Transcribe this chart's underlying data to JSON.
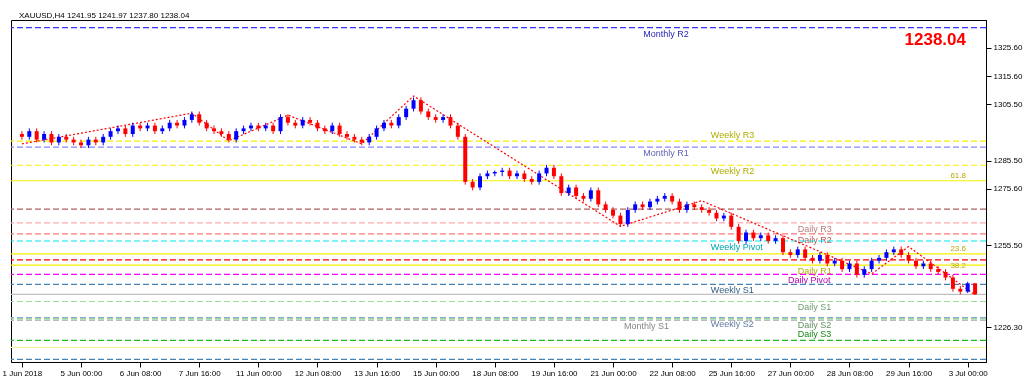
{
  "chart_data": {
    "type": "candlestick",
    "title": "XAUUSD,H4 1241.95 1241.97 1237.80 1238.04",
    "categories": [
      "1 Jun 2018",
      null,
      null,
      null,
      null,
      null,
      null,
      null,
      "5 Jun 00:00",
      null,
      null,
      null,
      null,
      null,
      null,
      null,
      "6 Jun 08:00",
      null,
      null,
      null,
      null,
      null,
      null,
      null,
      "7 Jun 16:00",
      null,
      null,
      null,
      null,
      null,
      null,
      null,
      "11 Jun 00:00",
      null,
      null,
      null,
      null,
      null,
      null,
      null,
      "12 Jun 08:00",
      null,
      null,
      null,
      null,
      null,
      null,
      null,
      "13 Jun 16:00",
      null,
      null,
      null,
      null,
      null,
      null,
      null,
      "15 Jun 00:00",
      null,
      null,
      null,
      null,
      null,
      null,
      null,
      "18 Jun 08:00",
      null,
      null,
      null,
      null,
      null,
      null,
      null,
      "19 Jun 16:00",
      null,
      null,
      null,
      null,
      null,
      null,
      null,
      "21 Jun 00:00",
      null,
      null,
      null,
      null,
      null,
      null,
      null,
      "22 Jun 08:00",
      null,
      null,
      null,
      null,
      null,
      null,
      null,
      "25 Jun 16:00",
      null,
      null,
      null,
      null,
      null,
      null,
      null,
      "27 Jun 00:00",
      null,
      null,
      null,
      null,
      null,
      null,
      null,
      "28 Jun 08:00",
      null,
      null,
      null,
      null,
      null,
      null,
      null,
      "29 Jun 16:00",
      null,
      null,
      null,
      null,
      null,
      null,
      null,
      "3 Jul 00:00",
      null
    ],
    "ohlc": [
      [
        1295,
        1296,
        1293,
        1294
      ],
      [
        1294,
        1297,
        1293,
        1296
      ],
      [
        1296,
        1297,
        1292,
        1293
      ],
      [
        1293,
        1296,
        1292,
        1295
      ],
      [
        1295,
        1296,
        1291,
        1292
      ],
      [
        1292,
        1295,
        1291,
        1294
      ],
      [
        1294,
        1295,
        1292,
        1293
      ],
      [
        1293,
        1294,
        1291,
        1292
      ],
      [
        1292,
        1293,
        1290,
        1291
      ],
      [
        1291,
        1294,
        1290,
        1293
      ],
      [
        1293,
        1294,
        1291,
        1292
      ],
      [
        1292,
        1295,
        1291,
        1294
      ],
      [
        1294,
        1297,
        1293,
        1296
      ],
      [
        1296,
        1298,
        1295,
        1297
      ],
      [
        1297,
        1298,
        1294,
        1295
      ],
      [
        1295,
        1299,
        1294,
        1298
      ],
      [
        1298,
        1299,
        1296,
        1297
      ],
      [
        1297,
        1299,
        1296,
        1298
      ],
      [
        1298,
        1299,
        1295,
        1296
      ],
      [
        1296,
        1298,
        1295,
        1297
      ],
      [
        1297,
        1300,
        1296,
        1299
      ],
      [
        1299,
        1300,
        1297,
        1298
      ],
      [
        1298,
        1301,
        1297,
        1300
      ],
      [
        1300,
        1303,
        1299,
        1302
      ],
      [
        1302,
        1303,
        1298,
        1299
      ],
      [
        1299,
        1300,
        1296,
        1297
      ],
      [
        1297,
        1298,
        1295,
        1296
      ],
      [
        1296,
        1297,
        1294,
        1295
      ],
      [
        1295,
        1296,
        1292,
        1293
      ],
      [
        1293,
        1297,
        1292,
        1296
      ],
      [
        1296,
        1298,
        1295,
        1297
      ],
      [
        1297,
        1299,
        1296,
        1298
      ],
      [
        1298,
        1299,
        1296,
        1297
      ],
      [
        1297,
        1299,
        1296,
        1298
      ],
      [
        1298,
        1299,
        1295,
        1296
      ],
      [
        1296,
        1302,
        1295,
        1301
      ],
      [
        1301,
        1302,
        1298,
        1299
      ],
      [
        1299,
        1300,
        1297,
        1298
      ],
      [
        1298,
        1301,
        1297,
        1300
      ],
      [
        1300,
        1301,
        1298,
        1299
      ],
      [
        1299,
        1300,
        1296,
        1297
      ],
      [
        1297,
        1298,
        1295,
        1296
      ],
      [
        1296,
        1299,
        1295,
        1298
      ],
      [
        1298,
        1299,
        1294,
        1295
      ],
      [
        1295,
        1296,
        1293,
        1294
      ],
      [
        1294,
        1295,
        1292,
        1293
      ],
      [
        1293,
        1294,
        1291,
        1292
      ],
      [
        1292,
        1295,
        1291,
        1294
      ],
      [
        1294,
        1298,
        1293,
        1297
      ],
      [
        1297,
        1300,
        1296,
        1299
      ],
      [
        1299,
        1300,
        1297,
        1298
      ],
      [
        1298,
        1302,
        1297,
        1301
      ],
      [
        1301,
        1305,
        1300,
        1304
      ],
      [
        1304,
        1308,
        1303,
        1307
      ],
      [
        1307,
        1308,
        1302,
        1303
      ],
      [
        1303,
        1304,
        1300,
        1301
      ],
      [
        1301,
        1302,
        1299,
        1300
      ],
      [
        1300,
        1302,
        1299,
        1301
      ],
      [
        1301,
        1302,
        1297,
        1298
      ],
      [
        1298,
        1299,
        1293,
        1294
      ],
      [
        1294,
        1295,
        1277,
        1278
      ],
      [
        1278,
        1279,
        1275,
        1276
      ],
      [
        1276,
        1281,
        1275,
        1280
      ],
      [
        1280,
        1282,
        1279,
        1281
      ],
      [
        1281,
        1282,
        1280,
        1281.5
      ],
      [
        1281.5,
        1283,
        1280,
        1282
      ],
      [
        1282,
        1283,
        1279,
        1280
      ],
      [
        1280,
        1282,
        1279,
        1281
      ],
      [
        1281,
        1282,
        1278,
        1279
      ],
      [
        1279,
        1280,
        1277,
        1278
      ],
      [
        1278,
        1282,
        1277,
        1281
      ],
      [
        1281,
        1284,
        1280,
        1283
      ],
      [
        1283,
        1284,
        1279,
        1280
      ],
      [
        1280,
        1281,
        1273,
        1274
      ],
      [
        1274,
        1277,
        1273,
        1276
      ],
      [
        1276,
        1277,
        1272,
        1273
      ],
      [
        1273,
        1274,
        1271,
        1272
      ],
      [
        1272,
        1276,
        1271,
        1275
      ],
      [
        1275,
        1276,
        1269,
        1270
      ],
      [
        1270,
        1271,
        1267,
        1268
      ],
      [
        1268,
        1269,
        1265,
        1266
      ],
      [
        1266,
        1267,
        1262,
        1263
      ],
      [
        1263,
        1269,
        1262,
        1268
      ],
      [
        1268,
        1271,
        1267,
        1270
      ],
      [
        1270,
        1271,
        1268,
        1269
      ],
      [
        1269,
        1272,
        1268,
        1271
      ],
      [
        1271,
        1273,
        1270,
        1272
      ],
      [
        1272,
        1274,
        1271,
        1273
      ],
      [
        1273,
        1274,
        1270,
        1271
      ],
      [
        1271,
        1272,
        1267,
        1268
      ],
      [
        1268,
        1271,
        1267,
        1270
      ],
      [
        1270,
        1271,
        1268,
        1269
      ],
      [
        1269,
        1270,
        1267,
        1268
      ],
      [
        1268,
        1269,
        1266,
        1267
      ],
      [
        1267,
        1268,
        1264,
        1265
      ],
      [
        1265,
        1267,
        1264,
        1266
      ],
      [
        1266,
        1267,
        1261,
        1262
      ],
      [
        1262,
        1263,
        1256,
        1257
      ],
      [
        1257,
        1261,
        1256,
        1260
      ],
      [
        1260,
        1261,
        1257,
        1258
      ],
      [
        1258,
        1260,
        1257,
        1259
      ],
      [
        1259,
        1260,
        1256,
        1257
      ],
      [
        1257,
        1259,
        1256,
        1258
      ],
      [
        1258,
        1259,
        1252,
        1253
      ],
      [
        1253,
        1254,
        1251,
        1252
      ],
      [
        1252,
        1255,
        1251,
        1254
      ],
      [
        1254,
        1255,
        1250,
        1251
      ],
      [
        1251,
        1252,
        1249,
        1250
      ],
      [
        1250,
        1253,
        1249,
        1252
      ],
      [
        1252,
        1253,
        1248,
        1249
      ],
      [
        1249,
        1251,
        1248,
        1250
      ],
      [
        1250,
        1251,
        1246,
        1247
      ],
      [
        1247,
        1250,
        1246,
        1249
      ],
      [
        1249,
        1250,
        1244,
        1245
      ],
      [
        1245,
        1248,
        1244,
        1247
      ],
      [
        1247,
        1251,
        1246,
        1250
      ],
      [
        1250,
        1252,
        1249,
        1251
      ],
      [
        1251,
        1254,
        1250,
        1253
      ],
      [
        1253,
        1255,
        1252,
        1254
      ],
      [
        1254,
        1255,
        1251,
        1252
      ],
      [
        1252,
        1253,
        1249,
        1250
      ],
      [
        1250,
        1251,
        1247,
        1248
      ],
      [
        1248,
        1250,
        1247,
        1249
      ],
      [
        1249,
        1250,
        1246,
        1247
      ],
      [
        1247,
        1248,
        1245,
        1246
      ],
      [
        1246,
        1247,
        1243,
        1244
      ],
      [
        1244,
        1245,
        1239,
        1240
      ],
      [
        1240,
        1241,
        1238,
        1239
      ],
      [
        1239,
        1242.5,
        1238.5,
        1241.95
      ],
      [
        1241.95,
        1241.97,
        1237.8,
        1238.04
      ]
    ],
    "colors": [
      "#ff0000",
      "#0000ff",
      "#ff0000",
      "#0000ff",
      "#ff0000",
      "#0000ff",
      "#ff0000",
      "#ff0000",
      "#ff0000",
      "#0000ff",
      "#ff0000",
      "#0000ff",
      "#0000ff",
      "#0000ff",
      "#ff0000",
      "#0000ff",
      "#ff0000",
      "#0000ff",
      "#ff0000",
      "#0000ff",
      "#0000ff",
      "#ff0000",
      "#0000ff",
      "#0000ff",
      "#ff0000",
      "#ff0000",
      "#ff0000",
      "#ff0000",
      "#ff0000",
      "#0000ff",
      "#0000ff",
      "#0000ff",
      "#ff0000",
      "#0000ff",
      "#ff0000",
      "#0000ff",
      "#ff0000",
      "#ff0000",
      "#0000ff",
      "#ff0000",
      "#ff0000",
      "#ff0000",
      "#0000ff",
      "#ff0000",
      "#ff0000",
      "#ff0000",
      "#ff0000",
      "#0000ff",
      "#0000ff",
      "#0000ff",
      "#ff0000",
      "#0000ff",
      "#0000ff",
      "#0000ff",
      "#ff0000",
      "#ff0000",
      "#ff0000",
      "#0000ff",
      "#ff0000",
      "#ff0000",
      "#ff0000",
      "#ff0000",
      "#0000ff",
      "#0000ff",
      "#0000ff",
      "#0000ff",
      "#ff0000",
      "#0000ff",
      "#ff0000",
      "#ff0000",
      "#0000ff",
      "#0000ff",
      "#ff0000",
      "#ff0000",
      "#0000ff",
      "#ff0000",
      "#ff0000",
      "#0000ff",
      "#ff0000",
      "#ff0000",
      "#ff0000",
      "#ff0000",
      "#0000ff",
      "#0000ff",
      "#ff0000",
      "#0000ff",
      "#0000ff",
      "#0000ff",
      "#ff0000",
      "#ff0000",
      "#0000ff",
      "#ff0000",
      "#ff0000",
      "#ff0000",
      "#ff0000",
      "#0000ff",
      "#ff0000",
      "#ff0000",
      "#0000ff",
      "#ff0000",
      "#0000ff",
      "#ff0000",
      "#0000ff",
      "#ff0000",
      "#ff0000",
      "#0000ff",
      "#ff0000",
      "#ff0000",
      "#0000ff",
      "#ff0000",
      "#0000ff",
      "#ff0000",
      "#0000ff",
      "#ff0000",
      "#0000ff",
      "#0000ff",
      "#0000ff",
      "#0000ff",
      "#0000ff",
      "#ff0000",
      "#ff0000",
      "#ff0000",
      "#0000ff",
      "#ff0000",
      "#ff0000",
      "#ff0000",
      "#ff0000",
      "#ff0000",
      "#0000ff",
      "#ff0000"
    ],
    "series": [
      {
        "type": "line",
        "color": "#ff0000",
        "line_style": "dotted",
        "values": [
          1291.5,
          null,
          null,
          null,
          null,
          null,
          null,
          null,
          null,
          null,
          null,
          null,
          null,
          null,
          null,
          null,
          null,
          null,
          null,
          null,
          null,
          null,
          null,
          1302.4,
          null,
          null,
          null,
          null,
          1292.6,
          null,
          null,
          null,
          null,
          null,
          null,
          null,
          1301.7,
          null,
          null,
          null,
          null,
          null,
          null,
          null,
          null,
          null,
          1291.5,
          null,
          null,
          null,
          null,
          null,
          null,
          1308.5,
          null,
          null,
          null,
          null,
          null,
          null,
          null,
          null,
          null,
          null,
          null,
          null,
          null,
          null,
          null,
          null,
          null,
          null,
          null,
          null,
          null,
          null,
          null,
          null,
          null,
          null,
          null,
          1262.2,
          null,
          null,
          null,
          null,
          null,
          null,
          null,
          null,
          null,
          null,
          1271.3,
          null,
          null,
          null,
          null,
          null,
          null,
          null,
          null,
          null,
          null,
          null,
          null,
          null,
          null,
          null,
          null,
          null,
          null,
          null,
          null,
          null,
          null,
          1245.3,
          null,
          null,
          null,
          null,
          1255,
          null,
          null,
          null,
          null,
          null,
          null,
          null,
          null,
          1237.8
        ]
      }
    ],
    "ylim": [
      1214,
      1335.5
    ],
    "yticks": [
      {
        "value": 1325.6,
        "label": "1325.60"
      },
      {
        "value": 1315.6,
        "label": "1315.60"
      },
      {
        "value": 1305.5,
        "label": "1305.50"
      },
      {
        "value": 1285.5,
        "label": "1285.50"
      },
      {
        "value": 1275.6,
        "label": "1275.60"
      },
      {
        "value": 1255.5,
        "label": "1255.50"
      },
      {
        "value": 1226.3,
        "label": "1226.30"
      }
    ],
    "ref_lines": [
      {
        "axis": "y",
        "value": 1332.8,
        "label": "Monthly R2",
        "color": "#3333ff",
        "line_style": "dashed"
      },
      {
        "axis": "y",
        "value": 1292.5,
        "label": "Weekly R3",
        "color": "#f5f000",
        "line_style": "dashed"
      },
      {
        "axis": "y",
        "value": 1290.31,
        "label": "Monthly R1",
        "color": "#8888ff",
        "line_style": "dashed"
      },
      {
        "axis": "y",
        "value": 1283.9,
        "label": "Weekly R2",
        "color": "#f5f000",
        "line_style": "dashed"
      },
      {
        "axis": "y",
        "value": 1278.4,
        "label": null,
        "color": "#f5f000",
        "line_style": "solid"
      },
      {
        "axis": "y",
        "value": 1268.33,
        "label": null,
        "color": "#b06060",
        "line_style": "dashed"
      },
      {
        "axis": "y",
        "value": 1263.4,
        "label": "Daily R3",
        "color": "#ffaaaa",
        "line_style": "dashed"
      },
      {
        "axis": "y",
        "value": 1259.5,
        "label": "Daily R2",
        "color": "#ff7777",
        "line_style": "dashed"
      },
      {
        "axis": "y",
        "value": 1256.99,
        "label": "Weekly Pivot",
        "color": "#00e5ee",
        "line_style": "dashed"
      },
      {
        "axis": "y",
        "value": 1252.4,
        "label": null,
        "color": "#f5f000",
        "line_style": "solid"
      },
      {
        "axis": "y",
        "value": 1250.3,
        "label": null,
        "color": "#ff0000",
        "line_style": "dashed"
      },
      {
        "axis": "y",
        "value": 1248.4,
        "label": "Daily R1",
        "color": "#f5f000",
        "line_style": "solid"
      },
      {
        "axis": "y",
        "value": 1245.13,
        "label": "Daily Pivot",
        "color": "#ff00ff",
        "line_style": "dashed"
      },
      {
        "axis": "y",
        "value": 1241.6,
        "label": "Weekly S1",
        "color": "#4682b4",
        "line_style": "dashed"
      },
      {
        "axis": "y",
        "value": 1238.04,
        "label": null,
        "color": "#c0c0c0",
        "line_style": "solid"
      },
      {
        "axis": "y",
        "value": 1235.5,
        "label": "Daily S1",
        "color": "#99dd99",
        "line_style": "dashed"
      },
      {
        "axis": "y",
        "value": 1229.8,
        "label": "Weekly S2",
        "color": "#88aadd",
        "line_style": "dashed"
      },
      {
        "axis": "y",
        "value": 1228.8,
        "label": "Monthly S1",
        "color": "#bbbbbb",
        "line_style": "dashed"
      },
      {
        "axis": "y",
        "value": 1229.3,
        "label": "Daily S2",
        "color": "#88cc88",
        "line_style": "dashed"
      },
      {
        "axis": "y",
        "value": 1221.65,
        "label": "Daily S3",
        "color": "#22bb22",
        "line_style": "dashed"
      },
      {
        "axis": "y",
        "value": 1219.2,
        "label": null,
        "color": "#f5f5a0",
        "line_style": "solid"
      },
      {
        "axis": "y",
        "value": 1214.9,
        "label": null,
        "color": "#4682b4",
        "line_style": "dashed"
      }
    ],
    "annotations": [
      "1238.04",
      {
        "text": "61.8",
        "y": 1278.4
      },
      {
        "text": "23.6",
        "y": 1252.4
      },
      {
        "text": "38.2",
        "y": 1250.3
      }
    ],
    "grid": false
  }
}
